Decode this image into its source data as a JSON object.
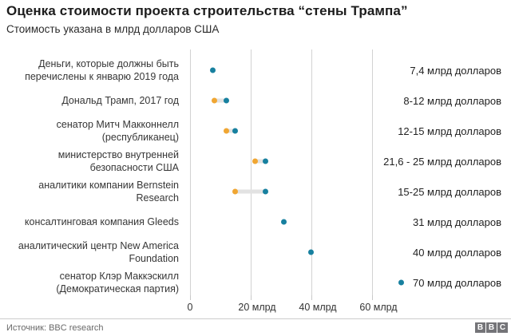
{
  "header": {
    "title": "Оценка стоимости проекта строительства “стены Трампа”",
    "subtitle": "Стоимость указана в млрд долларов США"
  },
  "chart_data": {
    "type": "scatter",
    "subtype": "dot-range",
    "title": "Оценка стоимости проекта строительства “стены Трампа”",
    "subtitle": "Стоимость указана в млрд долларов США",
    "xlabel": "",
    "ylabel": "",
    "unit": "млрд долларов США",
    "xlim": [
      0,
      76
    ],
    "grid": "vertical",
    "x_ticks": [
      {
        "value": 0,
        "label": "0"
      },
      {
        "value": 20,
        "label": "20 млрд"
      },
      {
        "value": 40,
        "label": "40 млрд"
      },
      {
        "value": 60,
        "label": "60 млрд"
      }
    ],
    "rows": [
      {
        "source": "Деньги, которые должны быть перечислены к январю 2019 года",
        "value_label": "7,4 млрд долларов",
        "low": 7.4,
        "high": 7.4
      },
      {
        "source": "Дональд Трамп, 2017 год",
        "value_label": "8-12 млрд долларов",
        "low": 8,
        "high": 12
      },
      {
        "source": "сенатор Митч Макконнелл (республиканец)",
        "value_label": "12-15 млрд долларов",
        "low": 12,
        "high": 15
      },
      {
        "source": "министерство внутренней безопасности США",
        "value_label": "21,6 - 25 млрд долларов",
        "low": 21.6,
        "high": 25
      },
      {
        "source": "аналитики компании Bernstein Research",
        "value_label": "15-25 млрд долларов",
        "low": 15,
        "high": 25
      },
      {
        "source": "консалтинговая компания Gleeds",
        "value_label": "31 млрд долларов",
        "low": 31,
        "high": 31
      },
      {
        "source": "аналитический центр New America Foundation",
        "value_label": "40 млрд долларов",
        "low": 40,
        "high": 40
      },
      {
        "source": "сенатор Клэр Маккэскилл (Демократическая партия)",
        "value_label": "70 млрд долларов",
        "low": 70,
        "high": 70
      }
    ],
    "colors": {
      "low_dot": "#f0a632",
      "high_dot": "#17809f",
      "range_connector": "#e2e2e2",
      "gridline": "#d2d2d2"
    }
  },
  "footer": {
    "source_note": "Источник: BBC research",
    "logo_blocks": [
      "B",
      "B",
      "C"
    ]
  }
}
